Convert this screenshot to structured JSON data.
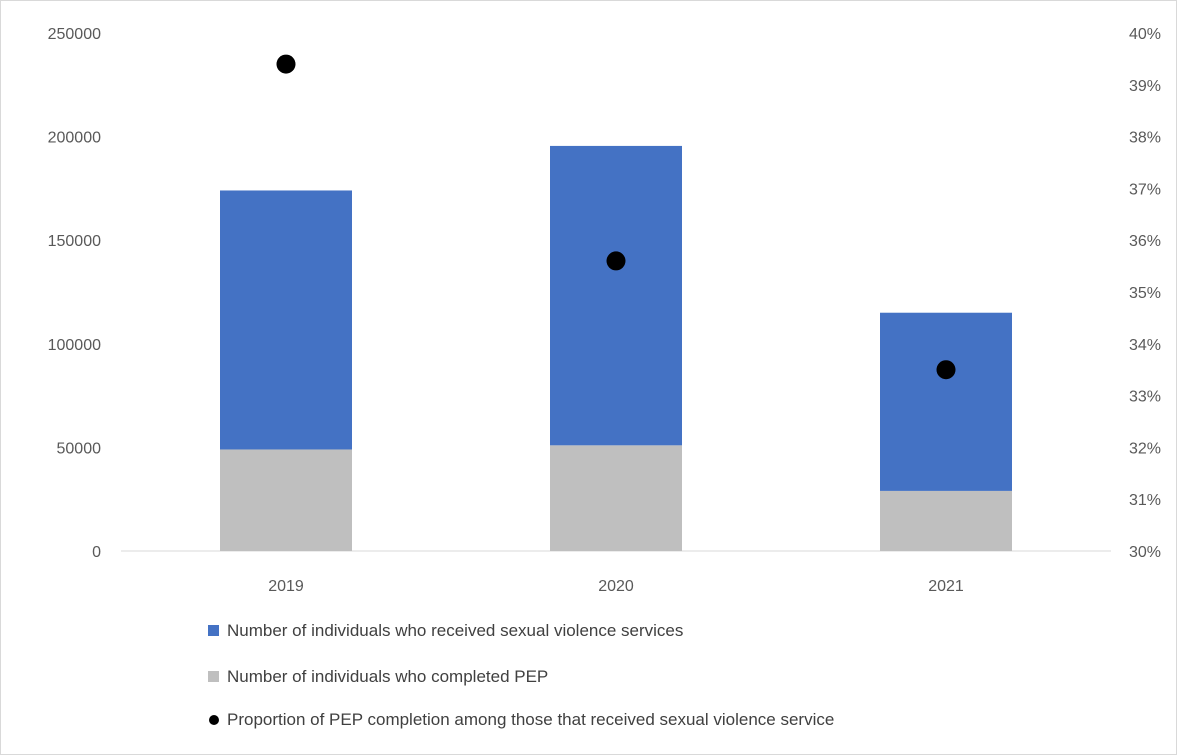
{
  "chart_data": {
    "type": "bar",
    "stacked": true,
    "categories": [
      "2019",
      "2020",
      "2021"
    ],
    "series": [
      {
        "name": "Number of individuals who completed PEP",
        "axis": "left",
        "values": [
          49000,
          51000,
          29000
        ],
        "color": "#bfbfbf"
      },
      {
        "name": "Number of individuals who received sexual violence services",
        "axis": "left",
        "values": [
          125000,
          144500,
          86000
        ],
        "color": "#4472c4"
      },
      {
        "name": "Proportion of PEP completion among those that received sexual violence service",
        "axis": "right",
        "type": "scatter",
        "values": [
          39.4,
          35.6,
          33.5
        ],
        "color": "#000000"
      }
    ],
    "totals_received_services": [
      174000,
      195500,
      115000
    ],
    "y_left": {
      "ylim": [
        0,
        250000
      ],
      "ticks": [
        "0",
        "50000",
        "100000",
        "150000",
        "200000",
        "250000"
      ]
    },
    "y_right": {
      "ylim": [
        30,
        40
      ],
      "ticks": [
        "30%",
        "31%",
        "32%",
        "33%",
        "34%",
        "35%",
        "36%",
        "37%",
        "38%",
        "39%",
        "40%"
      ]
    },
    "legend": {
      "placement": "bottom",
      "items": [
        "Number of individuals who received sexual violence services",
        "Number of individuals who completed PEP",
        "Proportion of PEP completion among those that received sexual violence service"
      ]
    },
    "grid": false
  }
}
